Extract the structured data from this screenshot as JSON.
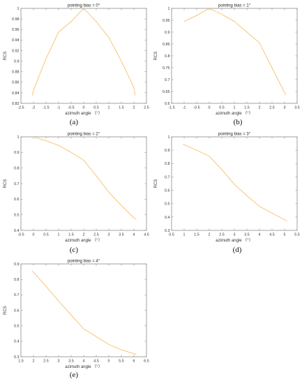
{
  "figure": {
    "line_color": "#F5C16C",
    "captions": [
      "(a)",
      "(b)",
      "(c)",
      "(d)",
      "(e)"
    ]
  },
  "chart_data": [
    {
      "type": "line",
      "title": "pointing bias = 0°",
      "xlabel": "azimuth angle （°）",
      "ylabel": "RCS",
      "xlim": [
        -2.5,
        2.5
      ],
      "ylim": [
        0.82,
        1.0
      ],
      "xticks": [
        "-2.5",
        "-2",
        "-1.5",
        "-1",
        "-0.5",
        "0",
        "0.5",
        "1",
        "1.5",
        "2",
        "2.5"
      ],
      "yticks": [
        "0.82",
        "0.84",
        "0.86",
        "0.88",
        "0.9",
        "0.92",
        "0.94",
        "0.96",
        "0.98",
        "1"
      ],
      "series": [
        {
          "x": [
            -2.05,
            -2,
            -1.5,
            -1,
            -0.5,
            0,
            0.5,
            1,
            1.5,
            2,
            2.05
          ],
          "y": [
            0.835,
            0.845,
            0.905,
            0.955,
            0.975,
            1.0,
            0.975,
            0.945,
            0.9,
            0.85,
            0.835
          ]
        }
      ]
    },
    {
      "type": "line",
      "title": "pointing bias = 1°",
      "xlabel": "azimuth angle （°）",
      "ylabel": "RCS",
      "xlim": [
        -1.5,
        3.5
      ],
      "ylim": [
        0.6,
        1.0
      ],
      "xticks": [
        "-1.5",
        "-1",
        "-0.5",
        "0",
        "0.5",
        "1",
        "1.5",
        "2",
        "2.5",
        "3",
        "3.5"
      ],
      "yticks": [
        "0.6",
        "0.65",
        "0.7",
        "0.75",
        "0.8",
        "0.85",
        "0.9",
        "0.95",
        "1"
      ],
      "series": [
        {
          "x": [
            -1,
            -0.5,
            0,
            0.5,
            1,
            1.5,
            2,
            2.5,
            3.05
          ],
          "y": [
            0.945,
            0.97,
            1.0,
            0.975,
            0.945,
            0.9,
            0.855,
            0.75,
            0.635
          ]
        }
      ]
    },
    {
      "type": "line",
      "title": "pointing bias = 2°",
      "xlabel": "azimuth angle （°）",
      "ylabel": "RCS",
      "xlim": [
        -0.5,
        4.5
      ],
      "ylim": [
        0.4,
        1.0
      ],
      "xticks": [
        "-0.5",
        "0",
        "0.5",
        "1",
        "1.5",
        "2",
        "2.5",
        "3",
        "3.5",
        "4",
        "4.5"
      ],
      "yticks": [
        "0.4",
        "0.5",
        "0.6",
        "0.7",
        "0.8",
        "0.9",
        "1"
      ],
      "series": [
        {
          "x": [
            0,
            0.5,
            1,
            1.5,
            2,
            2.5,
            3,
            3.5,
            4,
            4.1
          ],
          "y": [
            1.0,
            0.975,
            0.945,
            0.9,
            0.85,
            0.75,
            0.645,
            0.56,
            0.48,
            0.47
          ]
        }
      ]
    },
    {
      "type": "line",
      "title": "pointing bias = 3°",
      "xlabel": "azimuth angle （°）",
      "ylabel": "RCS",
      "xlim": [
        0.5,
        5.5
      ],
      "ylim": [
        0.3,
        1.0
      ],
      "xticks": [
        "0.5",
        "1",
        "1.5",
        "2",
        "2.5",
        "3",
        "3.5",
        "4",
        "4.5",
        "5",
        "5.5"
      ],
      "yticks": [
        "0.3",
        "0.4",
        "0.5",
        "0.6",
        "0.7",
        "0.8",
        "0.9",
        "1"
      ],
      "series": [
        {
          "x": [
            0.95,
            1.5,
            2,
            2.5,
            3,
            3.5,
            4,
            4.5,
            5.1
          ],
          "y": [
            0.945,
            0.9,
            0.855,
            0.755,
            0.645,
            0.56,
            0.48,
            0.43,
            0.37
          ]
        }
      ]
    },
    {
      "type": "line",
      "title": "pointing bias = 4°",
      "xlabel": "azimuth angle （°）",
      "ylabel": "RCS",
      "xlim": [
        1.5,
        6.5
      ],
      "ylim": [
        0.3,
        0.9
      ],
      "xticks": [
        "1.5",
        "2",
        "2.5",
        "3",
        "3.5",
        "4",
        "4.5",
        "5",
        "5.5",
        "6",
        "6.5"
      ],
      "yticks": [
        "0.3",
        "0.4",
        "0.5",
        "0.6",
        "0.7",
        "0.8",
        "0.9"
      ],
      "series": [
        {
          "x": [
            1.95,
            2.5,
            3,
            3.5,
            4,
            4.5,
            5,
            5.5,
            6.1
          ],
          "y": [
            0.855,
            0.755,
            0.66,
            0.57,
            0.48,
            0.43,
            0.38,
            0.345,
            0.315
          ]
        }
      ]
    }
  ]
}
